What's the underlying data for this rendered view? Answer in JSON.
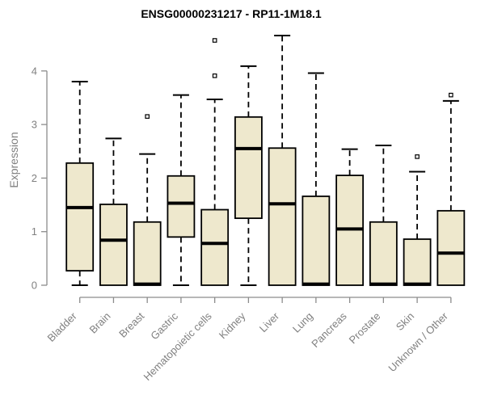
{
  "page": {
    "title": "ENSG00000231217 - RP11-1M18.1"
  },
  "chart_data": {
    "type": "boxplot",
    "title": "ENSG00000231217 - RP11-1M18.1",
    "xlabel": "",
    "ylabel": "Expression",
    "ylim": [
      0,
      4.7
    ],
    "yticks": [
      0,
      1,
      2,
      3,
      4
    ],
    "grid": false,
    "legend": "none",
    "colors": {
      "box_fill": "#EEE8CD",
      "box_stroke": "#000000",
      "median": "#000000",
      "whisker": "#000000",
      "axis_line": "#8c8c8c",
      "axis_text": "#808080",
      "title_text": "#000000",
      "outlier_fill": "#ffffff"
    },
    "categories": [
      "Bladder",
      "Brain",
      "Breast",
      "Gastric",
      "Hematopoietic cells",
      "Kidney",
      "Liver",
      "Lung",
      "Pancreas",
      "Prostate",
      "Skin",
      "Unknown / Other"
    ],
    "series": [
      {
        "name": "Bladder",
        "lo": 0,
        "q1": 0.27,
        "median": 1.45,
        "q3": 2.28,
        "hi": 3.8,
        "outliers": []
      },
      {
        "name": "Brain",
        "lo": 0,
        "q1": 0,
        "median": 0.84,
        "q3": 1.51,
        "hi": 2.74,
        "outliers": []
      },
      {
        "name": "Breast",
        "lo": 0,
        "q1": 0,
        "median": 0.02,
        "q3": 1.18,
        "hi": 2.45,
        "outliers": [
          3.15
        ]
      },
      {
        "name": "Gastric",
        "lo": 0,
        "q1": 0.9,
        "median": 1.53,
        "q3": 2.04,
        "hi": 3.55,
        "outliers": []
      },
      {
        "name": "Hematopoietic cells",
        "lo": 0,
        "q1": 0,
        "median": 0.78,
        "q3": 1.41,
        "hi": 3.47,
        "outliers": [
          3.91,
          4.57
        ]
      },
      {
        "name": "Kidney",
        "lo": 0,
        "q1": 1.25,
        "median": 2.55,
        "q3": 3.14,
        "hi": 4.09,
        "outliers": []
      },
      {
        "name": "Liver",
        "lo": 0,
        "q1": 0,
        "median": 1.52,
        "q3": 2.56,
        "hi": 4.66,
        "outliers": []
      },
      {
        "name": "Lung",
        "lo": 0,
        "q1": 0,
        "median": 0.02,
        "q3": 1.66,
        "hi": 3.96,
        "outliers": []
      },
      {
        "name": "Pancreas",
        "lo": 0,
        "q1": 0,
        "median": 1.05,
        "q3": 2.05,
        "hi": 2.54,
        "outliers": []
      },
      {
        "name": "Prostate",
        "lo": 0,
        "q1": 0,
        "median": 0.02,
        "q3": 1.18,
        "hi": 2.61,
        "outliers": []
      },
      {
        "name": "Skin",
        "lo": 0,
        "q1": 0,
        "median": 0.02,
        "q3": 0.86,
        "hi": 2.12,
        "outliers": [
          2.4
        ]
      },
      {
        "name": "Unknown / Other",
        "lo": 0,
        "q1": 0,
        "median": 0.6,
        "q3": 1.39,
        "hi": 3.44,
        "outliers": [
          3.55
        ]
      }
    ]
  }
}
